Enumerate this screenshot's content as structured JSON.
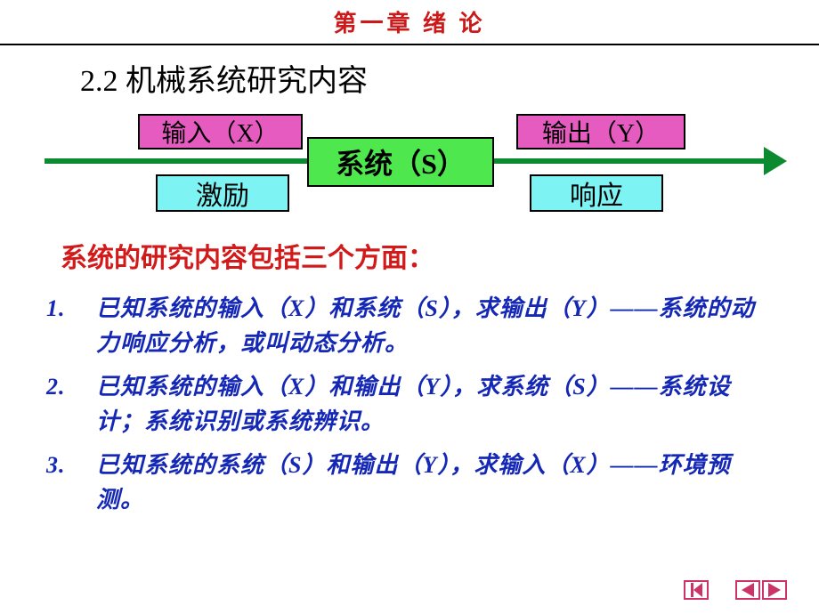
{
  "colors": {
    "chapterTitle": "#cc1a1a",
    "sectionTitle": "#000000",
    "arrow": "#0b8a2f",
    "boxPink": "#e65bc0",
    "boxGreen": "#4ee84e",
    "boxCyan": "#7df3f3",
    "subhead": "#d21a1a",
    "itemText": "#1528b5",
    "navIcon": "#cc3366",
    "background": "#ffffff"
  },
  "fonts": {
    "chapterSize": 26,
    "sectionSize": 34,
    "boxSize": 28,
    "systemSize": 32,
    "subheadSize": 30,
    "itemSize": 26
  },
  "chapter": "第一章  绪 论",
  "sectionTitle": "2.2 机械系统研究内容",
  "diagram": {
    "input_top": "输入（X）",
    "output_top": "输出（Y）",
    "system": "系统（S）",
    "input_bottom": "激励",
    "output_bottom": "响应"
  },
  "subhead": "系统的研究内容包括三个方面：",
  "items": [
    "已知系统的输入（X）和系统（S），求输出（Y）——系统的动力响应分析，或叫动态分析。",
    "已知系统的输入（X）和输出（Y），求系统（S）——系统设计；系统识别或系统辨识。",
    "已知系统的系统（S）和输出（Y），求输入（X）——环境预测。"
  ]
}
